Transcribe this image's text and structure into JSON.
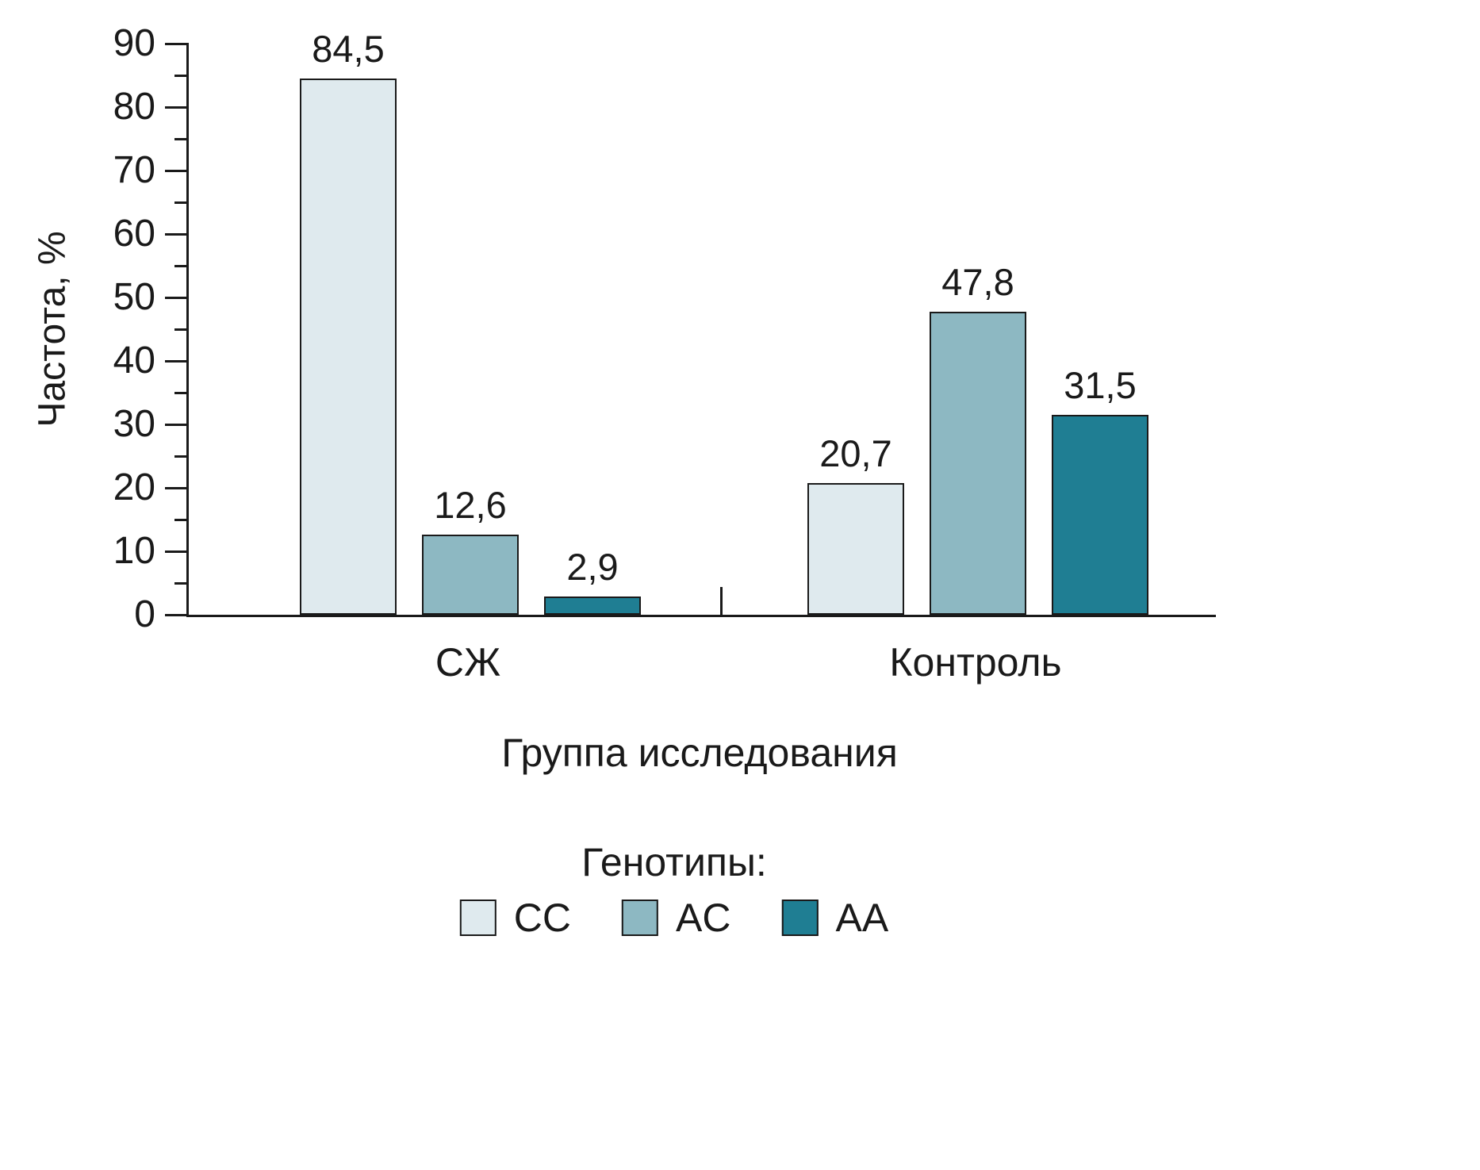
{
  "chart_data": {
    "type": "bar",
    "title": "",
    "ylabel": "Частота, %",
    "xlabel": "Группа исследования",
    "ylim": [
      0,
      90
    ],
    "yticks": [
      0,
      10,
      20,
      30,
      40,
      50,
      60,
      70,
      80,
      90
    ],
    "ytick_step_major": 10,
    "ytick_step_minor": 5,
    "grid": false,
    "categories": [
      "СЖ",
      "Контроль"
    ],
    "legend_title": "Генотипы:",
    "legend_position": "bottom",
    "bar_border_color": "#1a1a1a",
    "series": [
      {
        "name": "CC",
        "color": "#dfeaee",
        "values": [
          84.5,
          20.7
        ],
        "labels": [
          "84,5",
          "20,7"
        ]
      },
      {
        "name": "AC",
        "color": "#8db8c2",
        "values": [
          12.6,
          47.8
        ],
        "labels": [
          "12,6",
          "47,8"
        ]
      },
      {
        "name": "AA",
        "color": "#1f7e93",
        "values": [
          2.9,
          31.5
        ],
        "labels": [
          "2,9",
          "31,5"
        ]
      }
    ]
  }
}
